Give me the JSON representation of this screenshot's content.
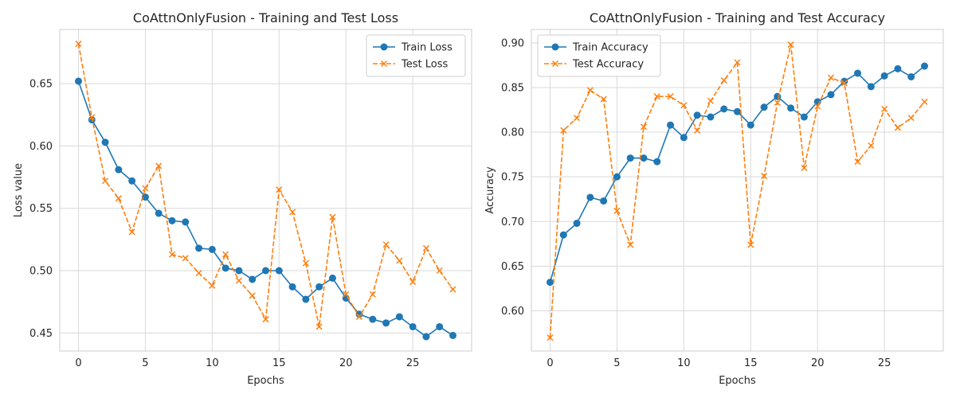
{
  "colors": {
    "train": "#1f77b4",
    "test": "#ff7f0e"
  },
  "chart_data": [
    {
      "type": "line",
      "title": "CoAttnOnlyFusion - Training and Test Loss",
      "xlabel": "Epochs",
      "ylabel": "Loss value",
      "xlim": [
        -1.4,
        29.4
      ],
      "ylim": [
        0.4355,
        0.6935
      ],
      "xticks": [
        "0",
        "5",
        "10",
        "15",
        "20",
        "25"
      ],
      "xtick_values": [
        0,
        5,
        10,
        15,
        20,
        25
      ],
      "yticks": [
        "0.45",
        "0.50",
        "0.55",
        "0.60",
        "0.65"
      ],
      "ytick_values": [
        0.45,
        0.5,
        0.55,
        0.6,
        0.65
      ],
      "grid": true,
      "legend_position": "top-right",
      "x": [
        0,
        1,
        2,
        3,
        4,
        5,
        6,
        7,
        8,
        9,
        10,
        11,
        12,
        13,
        14,
        15,
        16,
        17,
        18,
        19,
        20,
        21,
        22,
        23,
        24,
        25,
        26,
        27,
        28
      ],
      "series": [
        {
          "name": "Train Loss",
          "style": "solid-circle",
          "values": [
            0.652,
            0.621,
            0.603,
            0.581,
            0.572,
            0.559,
            0.546,
            0.54,
            0.539,
            0.518,
            0.517,
            0.502,
            0.5,
            0.493,
            0.5,
            0.5,
            0.487,
            0.477,
            0.487,
            0.494,
            0.478,
            0.465,
            0.461,
            0.458,
            0.463,
            0.455,
            0.447,
            0.455,
            0.448
          ]
        },
        {
          "name": "Test Loss",
          "style": "dashed-x",
          "values": [
            0.682,
            0.623,
            0.572,
            0.558,
            0.531,
            0.566,
            0.584,
            0.513,
            0.51,
            0.498,
            0.488,
            0.513,
            0.492,
            0.48,
            0.461,
            0.565,
            0.547,
            0.506,
            0.455,
            0.543,
            0.481,
            0.463,
            0.481,
            0.521,
            0.508,
            0.491,
            0.518,
            0.5,
            0.485
          ]
        }
      ]
    },
    {
      "type": "line",
      "title": "CoAttnOnlyFusion - Training and Test Accuracy",
      "xlabel": "Epochs",
      "ylabel": "Accuracy",
      "xlim": [
        -1.4,
        29.4
      ],
      "ylim": [
        0.555,
        0.915
      ],
      "xticks": [
        "0",
        "5",
        "10",
        "15",
        "20",
        "25"
      ],
      "xtick_values": [
        0,
        5,
        10,
        15,
        20,
        25
      ],
      "yticks": [
        "0.60",
        "0.65",
        "0.70",
        "0.75",
        "0.80",
        "0.85",
        "0.90"
      ],
      "ytick_values": [
        0.6,
        0.65,
        0.7,
        0.75,
        0.8,
        0.85,
        0.9
      ],
      "grid": true,
      "legend_position": "top-left",
      "x": [
        0,
        1,
        2,
        3,
        4,
        5,
        6,
        7,
        8,
        9,
        10,
        11,
        12,
        13,
        14,
        15,
        16,
        17,
        18,
        19,
        20,
        21,
        22,
        23,
        24,
        25,
        26,
        27,
        28
      ],
      "series": [
        {
          "name": "Train Accuracy",
          "style": "solid-circle",
          "values": [
            0.632,
            0.685,
            0.698,
            0.727,
            0.723,
            0.75,
            0.771,
            0.771,
            0.767,
            0.808,
            0.794,
            0.819,
            0.817,
            0.826,
            0.823,
            0.808,
            0.828,
            0.84,
            0.827,
            0.817,
            0.834,
            0.842,
            0.857,
            0.866,
            0.851,
            0.863,
            0.871,
            0.862,
            0.874
          ]
        },
        {
          "name": "Test Accuracy",
          "style": "dashed-x",
          "values": [
            0.57,
            0.802,
            0.816,
            0.847,
            0.837,
            0.712,
            0.674,
            0.806,
            0.84,
            0.84,
            0.83,
            0.802,
            0.835,
            0.858,
            0.878,
            0.674,
            0.751,
            0.833,
            0.898,
            0.76,
            0.829,
            0.861,
            0.855,
            0.767,
            0.785,
            0.826,
            0.805,
            0.816,
            0.834
          ]
        }
      ]
    }
  ]
}
